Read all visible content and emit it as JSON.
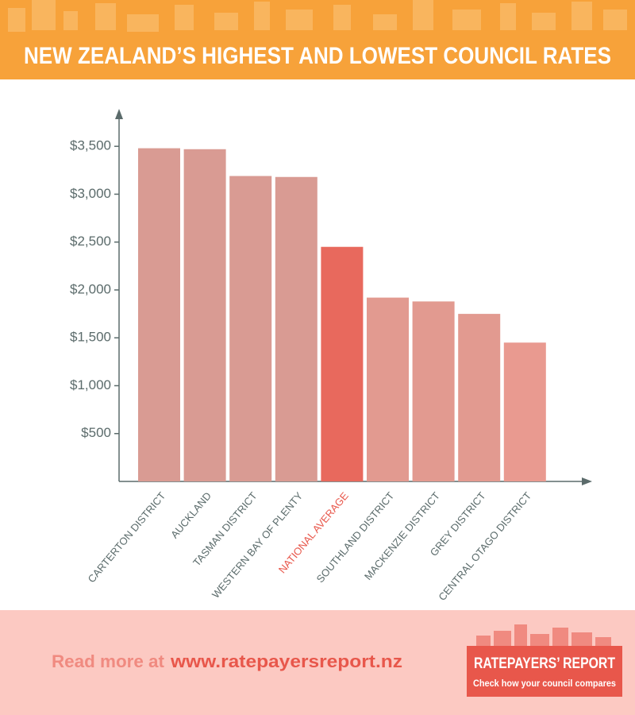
{
  "chart_data": {
    "type": "bar",
    "title": "NEW ZEALAND’S HIGHEST AND LOWEST COUNCIL RATES",
    "categories": [
      "CARTERTON DISTRICT",
      "AUCKLAND",
      "TASMAN DISTRICT",
      "WESTERN BAY OF PLENTY",
      "NATIONAL AVERAGE",
      "SOUTHLAND DISTRICT",
      "MACKENZIE DISTRICT",
      "GREY DISTRICT",
      "CENTRAL OTAGO DISTRICT"
    ],
    "values": [
      3480,
      3470,
      3190,
      3180,
      2450,
      1920,
      1880,
      1750,
      1450
    ],
    "colors": [
      "#d99b93",
      "#d99b93",
      "#d99b93",
      "#d99b93",
      "#e8695d",
      "#e29a90",
      "#e29a90",
      "#e29a90",
      "#e99a90"
    ],
    "label_colors": [
      "#5b6b6b",
      "#5b6b6b",
      "#5b6b6b",
      "#5b6b6b",
      "#e8574b",
      "#5b6b6b",
      "#5b6b6b",
      "#5b6b6b",
      "#5b6b6b"
    ],
    "ylim": [
      0,
      3850
    ],
    "yticks": [
      {
        "value": 500,
        "label": "$500"
      },
      {
        "value": 1000,
        "label": "$1,000"
      },
      {
        "value": 1500,
        "label": "$1,500"
      },
      {
        "value": 2000,
        "label": "$2,000"
      },
      {
        "value": 2500,
        "label": "$2,500"
      },
      {
        "value": 3000,
        "label": "$3,000"
      },
      {
        "value": 3500,
        "label": "$3,500"
      }
    ]
  },
  "footer": {
    "prefix": "Read more at",
    "url": "www.ratepayersreport.nz"
  },
  "logo": {
    "name": "RATEPAYERS’ REPORT",
    "tagline": "Check how your council compares"
  }
}
